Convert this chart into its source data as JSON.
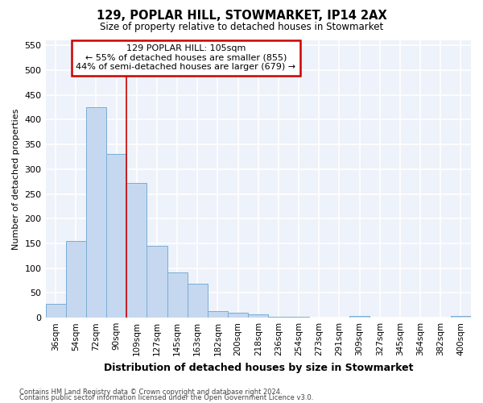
{
  "title1": "129, POPLAR HILL, STOWMARKET, IP14 2AX",
  "title2": "Size of property relative to detached houses in Stowmarket",
  "xlabel": "Distribution of detached houses by size in Stowmarket",
  "ylabel": "Number of detached properties",
  "categories": [
    "36sqm",
    "54sqm",
    "72sqm",
    "90sqm",
    "109sqm",
    "127sqm",
    "145sqm",
    "163sqm",
    "182sqm",
    "200sqm",
    "218sqm",
    "236sqm",
    "254sqm",
    "273sqm",
    "291sqm",
    "309sqm",
    "327sqm",
    "345sqm",
    "364sqm",
    "382sqm",
    "400sqm"
  ],
  "values": [
    28,
    155,
    425,
    330,
    272,
    145,
    91,
    68,
    13,
    10,
    7,
    2,
    2,
    1,
    1,
    4,
    0,
    0,
    0,
    0,
    3
  ],
  "bar_color": "#c5d8f0",
  "bar_edge_color": "#7aadd4",
  "background_color": "#eef2fa",
  "grid_color": "#ffffff",
  "annotation_box_text": "129 POPLAR HILL: 105sqm\n← 55% of detached houses are smaller (855)\n44% of semi-detached houses are larger (679) →",
  "vline_x": 4.0,
  "vline_color": "#cc0000",
  "ylim": [
    0,
    560
  ],
  "yticks": [
    0,
    50,
    100,
    150,
    200,
    250,
    300,
    350,
    400,
    450,
    500,
    550
  ],
  "footnote1": "Contains HM Land Registry data © Crown copyright and database right 2024.",
  "footnote2": "Contains public sector information licensed under the Open Government Licence v3.0."
}
